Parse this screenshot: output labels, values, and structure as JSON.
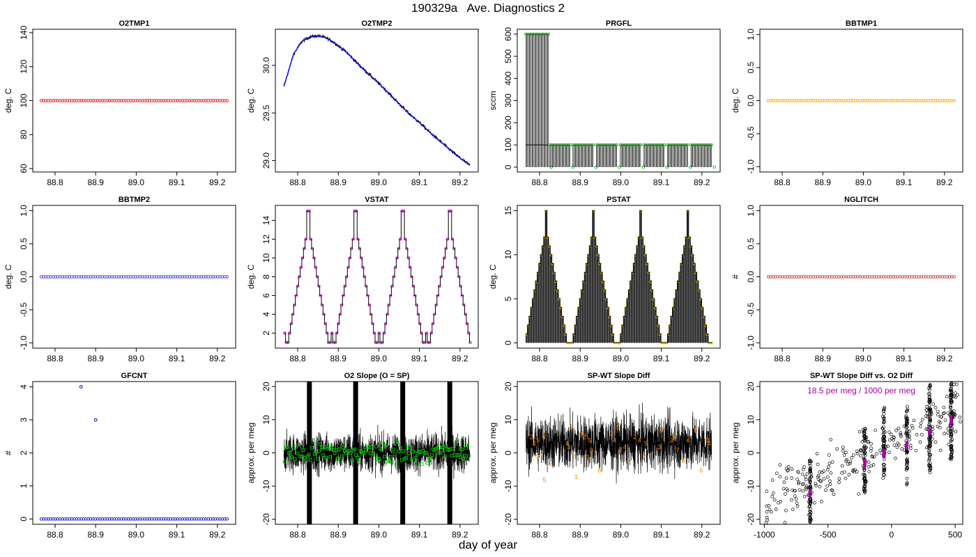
{
  "page": {
    "title": "190329a   Ave. Diagnostics 2",
    "xlabel": "day of year"
  },
  "colors": {
    "O2TMP1": "#ff0000",
    "O2TMP2": "#0000ff",
    "PRGFL": "#22aa22",
    "BBTMP1": "#ffa500",
    "BBTMP2": "#3333ff",
    "VSTAT": "#ff00ff",
    "PSTAT": "#ffdd00",
    "NGLITCH": "#cc3333",
    "GFCNT": "#0000cc",
    "O2SLOPE": "#00cc00",
    "SPWT": "#ff8800",
    "SCATTER": "#aa00aa"
  },
  "chart_data": [
    {
      "id": "o2tmp1",
      "type": "scatter",
      "title": "O2TMP1",
      "ylabel": "deg. C",
      "xlim": [
        88.745,
        89.245
      ],
      "ylim": [
        58,
        142
      ],
      "xticks": [
        "88.8",
        "88.9",
        "89.0",
        "89.1",
        "89.2"
      ],
      "yticks": [
        "60",
        "80",
        "100",
        "120",
        "140"
      ],
      "x_range": [
        88.766,
        89.224
      ],
      "n_points": 80,
      "y_constant": 100
    },
    {
      "id": "o2tmp2",
      "type": "line",
      "title": "O2TMP2",
      "ylabel": "deg. C",
      "xlim": [
        88.745,
        89.245
      ],
      "ylim": [
        28.88,
        30.38
      ],
      "xticks": [
        "88.8",
        "88.9",
        "89.0",
        "89.1",
        "89.2"
      ],
      "yticks": [
        "29.0",
        "29.5",
        "30.0"
      ],
      "x": [
        88.766,
        88.79,
        88.81,
        88.83,
        88.85,
        88.87,
        88.89,
        88.92,
        88.95,
        88.98,
        89.01,
        89.04,
        89.07,
        89.1,
        89.13,
        89.16,
        89.19,
        89.224
      ],
      "y": [
        29.78,
        30.12,
        30.25,
        30.3,
        30.31,
        30.29,
        30.24,
        30.14,
        30.01,
        29.89,
        29.77,
        29.64,
        29.51,
        29.4,
        29.28,
        29.17,
        29.06,
        28.95
      ]
    },
    {
      "id": "prgfl",
      "type": "line",
      "title": "PRGFL",
      "ylabel": "sccm",
      "xlim": [
        88.745,
        89.245
      ],
      "ylim": [
        -22,
        622
      ],
      "xticks": [
        "88.8",
        "88.9",
        "89.0",
        "89.1",
        "89.2"
      ],
      "yticks": [
        "0",
        "100",
        "200",
        "300",
        "400",
        "500",
        "600"
      ],
      "segments": [
        [
          88.766,
          88.822,
          600
        ],
        [
          88.825,
          88.875,
          100
        ],
        [
          88.882,
          88.932,
          100
        ],
        [
          88.94,
          88.99,
          100
        ],
        [
          88.999,
          89.049,
          100
        ],
        [
          89.057,
          89.107,
          100
        ],
        [
          89.115,
          89.165,
          100
        ],
        [
          89.173,
          89.224,
          100
        ]
      ],
      "gap_value": 0
    },
    {
      "id": "bbtmp1",
      "type": "scatter",
      "title": "BBTMP1",
      "ylabel": "deg. C",
      "xlim": [
        88.745,
        89.245
      ],
      "ylim": [
        -1.08,
        1.08
      ],
      "xticks": [
        "88.8",
        "88.9",
        "89.0",
        "89.1",
        "89.2"
      ],
      "yticks": [
        "-1.0",
        "-0.5",
        "0.0",
        "0.5",
        "1.0"
      ],
      "x_range": [
        88.766,
        89.224
      ],
      "n_points": 80,
      "y_constant": 0
    },
    {
      "id": "bbtmp2",
      "type": "scatter",
      "title": "BBTMP2",
      "ylabel": "deg. C",
      "xlim": [
        88.745,
        89.245
      ],
      "ylim": [
        -1.08,
        1.08
      ],
      "xticks": [
        "88.8",
        "88.9",
        "89.0",
        "89.1",
        "89.2"
      ],
      "yticks": [
        "-1.0",
        "-0.5",
        "0.0",
        "0.5",
        "1.0"
      ],
      "x_range": [
        88.766,
        89.224
      ],
      "n_points": 80,
      "y_constant": 0
    },
    {
      "id": "vstat",
      "type": "line",
      "title": "VSTAT",
      "ylabel": "deg. C",
      "xlim": [
        88.745,
        89.245
      ],
      "ylim": [
        0.4,
        15.6
      ],
      "xticks": [
        "88.8",
        "88.9",
        "89.0",
        "89.1",
        "89.2"
      ],
      "yticks": [
        "2",
        "4",
        "6",
        "8",
        "10",
        "12",
        "14"
      ],
      "x_start": 88.766,
      "period": 0.1164,
      "cycle": [
        2,
        1,
        1,
        2,
        3,
        4,
        5,
        6,
        7,
        8,
        9,
        10,
        11,
        12,
        15,
        15,
        12,
        11,
        10,
        9,
        8,
        7,
        6,
        5,
        4,
        3,
        2,
        1,
        1
      ]
    },
    {
      "id": "pstat",
      "type": "line",
      "title": "PSTAT",
      "ylabel": "deg. C",
      "xlim": [
        88.745,
        89.245
      ],
      "ylim": [
        -0.6,
        15.6
      ],
      "xticks": [
        "88.8",
        "88.9",
        "89.0",
        "89.1",
        "89.2"
      ],
      "yticks": [
        "0",
        "5",
        "10",
        "15"
      ],
      "x_start": 88.766,
      "period": 0.1164,
      "cycle": [
        1,
        2,
        3,
        4,
        5,
        6,
        7,
        8,
        9,
        10,
        11,
        12,
        15,
        12,
        11,
        10,
        9,
        8,
        7,
        6,
        5,
        4,
        3,
        2,
        1,
        0,
        0,
        0,
        0
      ]
    },
    {
      "id": "nglitch",
      "type": "scatter",
      "title": "NGLITCH",
      "ylabel": "#",
      "xlim": [
        88.745,
        89.245
      ],
      "ylim": [
        -1.08,
        1.08
      ],
      "xticks": [
        "88.8",
        "88.9",
        "89.0",
        "89.1",
        "89.2"
      ],
      "yticks": [
        "-1.0",
        "-0.5",
        "0.0",
        "0.5",
        "1.0"
      ],
      "x_range": [
        88.766,
        89.224
      ],
      "n_points": 80,
      "y_constant": 0
    },
    {
      "id": "gfcnt",
      "type": "scatter",
      "title": "GFCNT",
      "ylabel": "#",
      "xlim": [
        88.745,
        89.245
      ],
      "ylim": [
        -0.16,
        4.16
      ],
      "xticks": [
        "88.8",
        "88.9",
        "89.0",
        "89.1",
        "89.2"
      ],
      "yticks": [
        "0",
        "1",
        "2",
        "3",
        "4"
      ],
      "x_range": [
        88.766,
        89.224
      ],
      "n_points": 80,
      "y_constant": 0,
      "points": [
        [
          88.864,
          4
        ],
        [
          88.9,
          3
        ]
      ]
    },
    {
      "id": "o2slope",
      "type": "line",
      "title": "O2 Slope (O = SP)",
      "ylabel": "approx. per meg",
      "xlim": [
        88.745,
        89.245
      ],
      "ylim": [
        -21.5,
        21.5
      ],
      "xticks": [
        "88.8",
        "88.9",
        "89.0",
        "89.1",
        "89.2"
      ],
      "yticks": [
        "-20",
        "-10",
        "0",
        "10",
        "20"
      ],
      "noise_center": 0,
      "noise_amplitude": 10,
      "n_markers": 130,
      "marker_spread": 6,
      "dense_bands": [
        88.828,
        88.942,
        89.058,
        89.174
      ]
    },
    {
      "id": "spwt",
      "type": "line",
      "title": "SP-WT Slope Diff",
      "ylabel": "approx. per meg",
      "xlim": [
        88.745,
        89.245
      ],
      "ylim": [
        -21.5,
        21.5
      ],
      "xticks": [
        "88.8",
        "88.9",
        "89.0",
        "89.1",
        "89.2"
      ],
      "yticks": [
        "-20",
        "-10",
        "0",
        "10",
        "20"
      ],
      "noise_center": 3,
      "noise_amplitude": 14,
      "labels": [
        [
          88.78,
          5,
          "2"
        ],
        [
          88.786,
          3,
          "4"
        ],
        [
          88.796,
          4,
          "5"
        ],
        [
          88.794,
          -1,
          "3"
        ],
        [
          88.805,
          0,
          "7"
        ],
        [
          88.812,
          -8,
          "5"
        ],
        [
          88.81,
          5,
          "4"
        ],
        [
          88.828,
          -3,
          "6"
        ],
        [
          88.868,
          3,
          "4"
        ],
        [
          88.872,
          2,
          "3"
        ],
        [
          88.878,
          8,
          "5"
        ],
        [
          88.884,
          -1,
          "7"
        ],
        [
          88.89,
          -7,
          "1"
        ],
        [
          88.905,
          6,
          "4"
        ],
        [
          88.91,
          5,
          "2"
        ],
        [
          88.918,
          -1,
          "3"
        ],
        [
          88.923,
          4,
          "5"
        ],
        [
          88.928,
          1,
          "3"
        ],
        [
          88.939,
          0,
          "7"
        ],
        [
          88.948,
          -5,
          "6"
        ],
        [
          88.976,
          6,
          "3"
        ],
        [
          88.985,
          4,
          "4"
        ],
        [
          88.993,
          8,
          "5"
        ],
        [
          89.0,
          1,
          "7"
        ],
        [
          89.01,
          2,
          "4"
        ],
        [
          89.02,
          -3,
          "6"
        ],
        [
          89.035,
          5,
          "2"
        ],
        [
          89.046,
          4,
          "4"
        ],
        [
          89.058,
          -1,
          "7"
        ],
        [
          89.062,
          3,
          "5"
        ],
        [
          89.095,
          2,
          "3"
        ],
        [
          89.1,
          7,
          "5"
        ],
        [
          89.107,
          -3,
          "1"
        ],
        [
          89.125,
          4,
          "3"
        ],
        [
          89.133,
          5,
          "2"
        ],
        [
          89.14,
          1,
          "7"
        ],
        [
          89.155,
          -2,
          "6"
        ],
        [
          89.166,
          4,
          "4"
        ],
        [
          89.185,
          7,
          "5"
        ],
        [
          89.198,
          -5,
          "6"
        ],
        [
          89.214,
          4,
          "3"
        ],
        [
          89.218,
          3,
          "4"
        ]
      ]
    },
    {
      "id": "spwt_vs_o2",
      "type": "scatter",
      "title": "SP-WT Slope Diff vs. O2 Diff",
      "ylabel": "approx. per meg",
      "xlim": [
        -1035,
        560
      ],
      "ylim": [
        -21.5,
        21.5
      ],
      "xticks": [
        "-1000",
        "-500",
        "0",
        "500"
      ],
      "yticks": [
        "-20",
        "-10",
        "0",
        "10",
        "20"
      ],
      "annotation": "18.5 per meg / 1000 per meg",
      "clusters": [
        {
          "x": -640,
          "ymin": -21,
          "ymax": -2,
          "n": 70,
          "ymean": -12
        },
        {
          "x": -210,
          "ymin": -12,
          "ymax": 8,
          "n": 70,
          "ymean": -3
        },
        {
          "x": -60,
          "ymin": -8,
          "ymax": 14,
          "n": 60,
          "ymean": 0
        },
        {
          "x": 120,
          "ymin": -10,
          "ymax": 14,
          "n": 60,
          "ymean": 2
        },
        {
          "x": 300,
          "ymin": -6,
          "ymax": 21,
          "n": 90,
          "ymean": 6
        },
        {
          "x": 470,
          "ymin": -2,
          "ymax": 21,
          "n": 90,
          "ymean": 10
        }
      ],
      "diffuse_n": 260
    }
  ]
}
